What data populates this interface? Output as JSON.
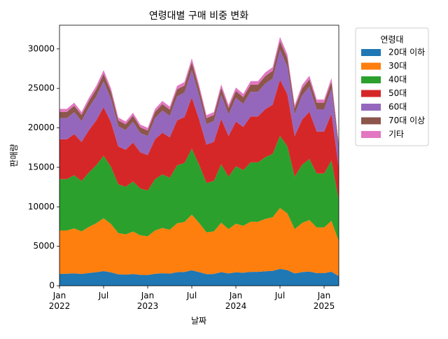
{
  "chart_data": {
    "type": "area",
    "stacked": true,
    "title": "연령대별 구매 비중 변화",
    "xlabel": "날짜",
    "ylabel": "판매량",
    "legend_title": "연령대",
    "legend": "upper right outside",
    "x": [
      "2022-01",
      "2022-02",
      "2022-03",
      "2022-04",
      "2022-05",
      "2022-06",
      "2022-07",
      "2022-08",
      "2022-09",
      "2022-10",
      "2022-11",
      "2022-12",
      "2023-01",
      "2023-02",
      "2023-03",
      "2023-04",
      "2023-05",
      "2023-06",
      "2023-07",
      "2023-08",
      "2023-09",
      "2023-10",
      "2023-11",
      "2023-12",
      "2024-01",
      "2024-02",
      "2024-03",
      "2024-04",
      "2024-05",
      "2024-06",
      "2024-07",
      "2024-08",
      "2024-09",
      "2024-10",
      "2024-11",
      "2024-12",
      "2025-01",
      "2025-02",
      "2025-03"
    ],
    "xticks": [
      {
        "value": "2022-01",
        "label": "Jan 2022"
      },
      {
        "value": "2022-07",
        "label": "Jul"
      },
      {
        "value": "2023-01",
        "label": "Jan 2023"
      },
      {
        "value": "2023-07",
        "label": "Jul"
      },
      {
        "value": "2024-01",
        "label": "Jan 2024"
      },
      {
        "value": "2024-07",
        "label": "Jul"
      },
      {
        "value": "2025-01",
        "label": "Jan 2025"
      }
    ],
    "ylim": [
      0,
      33000
    ],
    "yticks": [
      0,
      5000,
      10000,
      15000,
      20000,
      25000,
      30000
    ],
    "grid": false,
    "series": [
      {
        "name": "20대 이하",
        "color": "#1f77b4",
        "values": [
          1520,
          1520,
          1580,
          1500,
          1620,
          1720,
          1860,
          1700,
          1450,
          1410,
          1490,
          1390,
          1360,
          1520,
          1590,
          1540,
          1720,
          1750,
          1960,
          1730,
          1470,
          1500,
          1730,
          1560,
          1710,
          1650,
          1760,
          1760,
          1840,
          1880,
          2140,
          1990,
          1560,
          1730,
          1810,
          1600,
          1600,
          1790,
          1220
        ]
      },
      {
        "name": "30대",
        "color": "#ff7f0e",
        "values": [
          5490,
          5490,
          5680,
          5390,
          5830,
          6200,
          6690,
          6130,
          5220,
          5100,
          5370,
          5000,
          4900,
          5490,
          5730,
          5560,
          6200,
          6320,
          7060,
          6220,
          5290,
          5390,
          6250,
          5610,
          6150,
          5950,
          6350,
          6350,
          6620,
          6790,
          7720,
          7180,
          5610,
          6220,
          6520,
          5780,
          5780,
          6440,
          4410
        ]
      },
      {
        "name": "40대",
        "color": "#2ca02c",
        "values": [
          6500,
          6500,
          6730,
          6380,
          6900,
          7340,
          7920,
          7250,
          6180,
          6030,
          6350,
          5920,
          5800,
          6500,
          6790,
          6580,
          7340,
          7480,
          8350,
          7370,
          6260,
          6380,
          7400,
          6640,
          7280,
          7050,
          7510,
          7510,
          7830,
          8030,
          9140,
          8500,
          6640,
          7370,
          7710,
          6840,
          6840,
          7630,
          5220
        ]
      },
      {
        "name": "50대",
        "color": "#d62728",
        "values": [
          5040,
          5040,
          5220,
          4950,
          5360,
          5690,
          6140,
          5630,
          4790,
          4680,
          4930,
          4590,
          4500,
          5040,
          5270,
          5110,
          5690,
          5810,
          6480,
          5720,
          4860,
          4950,
          5740,
          5150,
          5650,
          5470,
          5830,
          5830,
          6080,
          6230,
          7090,
          6590,
          5150,
          5720,
          5990,
          5310,
          5310,
          5920,
          4050
        ]
      },
      {
        "name": "60대",
        "color": "#9467bd",
        "values": [
          2690,
          2690,
          2780,
          2640,
          2860,
          3040,
          3280,
          3000,
          2560,
          2500,
          2630,
          2450,
          2400,
          2690,
          2810,
          2720,
          3040,
          3100,
          3460,
          3050,
          2590,
          2640,
          3060,
          2750,
          3010,
          2920,
          3110,
          3110,
          3240,
          3320,
          3780,
          3520,
          2750,
          3050,
          3190,
          2830,
          2830,
          3160,
          2160
        ]
      },
      {
        "name": "70대 이상",
        "color": "#8c564b",
        "values": [
          780,
          780,
          810,
          770,
          830,
          890,
          960,
          880,
          750,
          730,
          770,
          710,
          700,
          780,
          820,
          790,
          890,
          900,
          1010,
          890,
          760,
          770,
          890,
          800,
          880,
          850,
          910,
          910,
          950,
          970,
          1100,
          1030,
          800,
          890,
          930,
          830,
          830,
          920,
          630
        ]
      },
      {
        "name": "기타",
        "color": "#e377c2",
        "values": [
          380,
          380,
          390,
          370,
          400,
          430,
          460,
          430,
          360,
          350,
          370,
          350,
          340,
          380,
          400,
          390,
          430,
          440,
          490,
          430,
          370,
          370,
          430,
          390,
          430,
          410,
          440,
          440,
          460,
          470,
          540,
          500,
          390,
          430,
          450,
          400,
          400,
          450,
          310
        ]
      }
    ]
  }
}
